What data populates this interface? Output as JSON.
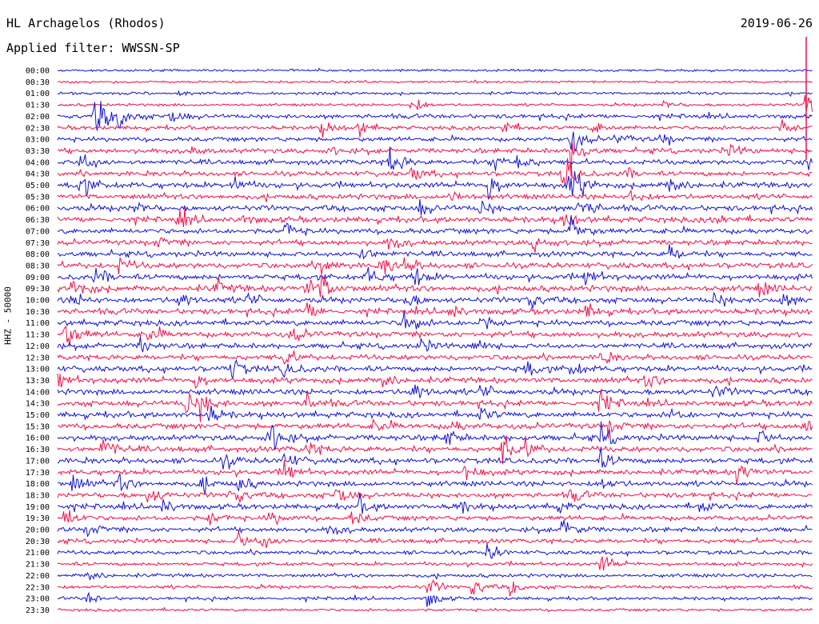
{
  "header": {
    "station": "HL Archagelos (Rhodos)",
    "filter_text": "Applied filter: WWSSN-SP",
    "date": "2019-06-26"
  },
  "axis": {
    "channel_label": "HHZ - 50000"
  },
  "colors": {
    "blue_trace": "#1212d4",
    "red_trace": "#f0104a",
    "background": "#ffffff"
  },
  "chart_data": {
    "type": "line",
    "title": "HL Archagelos (Rhodos)",
    "subtitle": "Applied filter: WWSSN-SP",
    "date": "2019-06-26",
    "ylabel": "HHZ - 50000",
    "xlabel": "",
    "grid": false,
    "row_interval_minutes": 30,
    "row_colors": [
      "blue",
      "red"
    ],
    "categories": [
      "00:00",
      "00:30",
      "01:00",
      "01:30",
      "02:00",
      "02:30",
      "03:00",
      "03:30",
      "04:00",
      "04:30",
      "05:00",
      "05:30",
      "06:00",
      "06:30",
      "07:00",
      "07:30",
      "08:00",
      "08:30",
      "09:00",
      "09:30",
      "10:00",
      "10:30",
      "11:00",
      "11:30",
      "12:00",
      "12:30",
      "13:00",
      "13:30",
      "14:00",
      "14:30",
      "15:00",
      "15:30",
      "16:00",
      "16:30",
      "17:00",
      "17:30",
      "18:00",
      "18:30",
      "19:00",
      "19:30",
      "20:00",
      "20:30",
      "21:00",
      "21:30",
      "22:00",
      "22:30",
      "23:00",
      "23:30"
    ],
    "noise_level": [
      0.2,
      0.2,
      0.3,
      0.3,
      0.7,
      0.6,
      0.7,
      0.8,
      0.8,
      0.8,
      1.0,
      0.9,
      1.0,
      1.0,
      0.9,
      0.9,
      0.9,
      1.0,
      1.0,
      1.1,
      1.0,
      1.0,
      1.0,
      1.0,
      0.9,
      0.9,
      1.0,
      1.0,
      1.0,
      1.0,
      1.0,
      1.0,
      1.0,
      1.0,
      1.0,
      0.9,
      0.9,
      0.9,
      0.9,
      0.8,
      0.8,
      0.7,
      0.6,
      0.5,
      0.5,
      0.5,
      0.4,
      0.3
    ],
    "events": [
      {
        "row": 1,
        "t": 0.4,
        "a": 0.4
      },
      {
        "row": 2,
        "t": 0.16,
        "a": 0.3
      },
      {
        "row": 3,
        "t": 0.47,
        "a": 1.2
      },
      {
        "row": 3,
        "t": 0.8,
        "a": 0.6
      },
      {
        "row": 3,
        "t": 0.99,
        "a": 2.0
      },
      {
        "row": 4,
        "t": 0.05,
        "a": 3.0
      },
      {
        "row": 4,
        "t": 0.08,
        "a": 2.0
      },
      {
        "row": 4,
        "t": 0.15,
        "a": 1.0
      },
      {
        "row": 5,
        "t": 0.35,
        "a": 1.0
      },
      {
        "row": 5,
        "t": 0.4,
        "a": 1.0
      },
      {
        "row": 5,
        "t": 0.59,
        "a": 1.0
      },
      {
        "row": 5,
        "t": 0.71,
        "a": 0.9
      },
      {
        "row": 5,
        "t": 0.96,
        "a": 0.9
      },
      {
        "row": 6,
        "t": 0.68,
        "a": 2.0
      },
      {
        "row": 6,
        "t": 0.74,
        "a": 0.8
      },
      {
        "row": 6,
        "t": 0.8,
        "a": 0.8
      },
      {
        "row": 7,
        "t": 0.17,
        "a": 0.7
      },
      {
        "row": 7,
        "t": 0.36,
        "a": 0.5
      },
      {
        "row": 7,
        "t": 0.68,
        "a": 2.5
      },
      {
        "row": 7,
        "t": 0.89,
        "a": 0.8
      },
      {
        "row": 8,
        "t": 0.03,
        "a": 2.0
      },
      {
        "row": 8,
        "t": 0.44,
        "a": 2.0
      },
      {
        "row": 8,
        "t": 0.58,
        "a": 1.5
      },
      {
        "row": 8,
        "t": 0.61,
        "a": 1.2
      },
      {
        "row": 8,
        "t": 0.99,
        "a": 1.5
      },
      {
        "row": 9,
        "t": 0.47,
        "a": 1.0
      },
      {
        "row": 9,
        "t": 0.67,
        "a": 2.5
      },
      {
        "row": 9,
        "t": 0.75,
        "a": 0.8
      },
      {
        "row": 10,
        "t": 0.03,
        "a": 1.6
      },
      {
        "row": 10,
        "t": 0.23,
        "a": 1.2
      },
      {
        "row": 10,
        "t": 0.57,
        "a": 2.0
      },
      {
        "row": 10,
        "t": 0.68,
        "a": 3.5
      },
      {
        "row": 10,
        "t": 0.81,
        "a": 1.2
      },
      {
        "row": 11,
        "t": 0.52,
        "a": 1.0
      },
      {
        "row": 11,
        "t": 0.76,
        "a": 1.0
      },
      {
        "row": 12,
        "t": 0.1,
        "a": 1.0
      },
      {
        "row": 12,
        "t": 0.48,
        "a": 1.0
      },
      {
        "row": 12,
        "t": 0.56,
        "a": 1.0
      },
      {
        "row": 12,
        "t": 0.69,
        "a": 2.0
      },
      {
        "row": 13,
        "t": 0.16,
        "a": 1.2
      },
      {
        "row": 13,
        "t": 0.24,
        "a": 0.8
      },
      {
        "row": 13,
        "t": 0.67,
        "a": 1.0
      },
      {
        "row": 13,
        "t": 0.87,
        "a": 1.0
      },
      {
        "row": 14,
        "t": 0.3,
        "a": 1.2
      },
      {
        "row": 14,
        "t": 0.68,
        "a": 2.0
      },
      {
        "row": 15,
        "t": 0.13,
        "a": 0.8
      },
      {
        "row": 15,
        "t": 0.44,
        "a": 1.2
      },
      {
        "row": 15,
        "t": 0.63,
        "a": 1.0
      },
      {
        "row": 16,
        "t": 0.4,
        "a": 1.2
      },
      {
        "row": 16,
        "t": 0.81,
        "a": 1.2
      },
      {
        "row": 17,
        "t": 0.08,
        "a": 1.0
      },
      {
        "row": 17,
        "t": 0.35,
        "a": 1.2
      },
      {
        "row": 17,
        "t": 0.43,
        "a": 1.2
      },
      {
        "row": 17,
        "t": 0.46,
        "a": 1.2
      },
      {
        "row": 18,
        "t": 0.05,
        "a": 1.2
      },
      {
        "row": 18,
        "t": 0.41,
        "a": 1.2
      },
      {
        "row": 18,
        "t": 0.47,
        "a": 1.5
      },
      {
        "row": 18,
        "t": 0.7,
        "a": 1.3
      },
      {
        "row": 19,
        "t": 0.02,
        "a": 1.5
      },
      {
        "row": 19,
        "t": 0.21,
        "a": 1.0
      },
      {
        "row": 19,
        "t": 0.33,
        "a": 1.2
      },
      {
        "row": 19,
        "t": 0.35,
        "a": 1.8
      },
      {
        "row": 19,
        "t": 0.93,
        "a": 1.0
      },
      {
        "row": 20,
        "t": 0.02,
        "a": 1.0
      },
      {
        "row": 20,
        "t": 0.16,
        "a": 1.2
      },
      {
        "row": 20,
        "t": 0.25,
        "a": 1.0
      },
      {
        "row": 20,
        "t": 0.46,
        "a": 1.2
      },
      {
        "row": 20,
        "t": 0.62,
        "a": 1.5
      },
      {
        "row": 20,
        "t": 0.87,
        "a": 1.0
      },
      {
        "row": 20,
        "t": 0.96,
        "a": 1.0
      },
      {
        "row": 21,
        "t": 0.33,
        "a": 1.2
      },
      {
        "row": 21,
        "t": 0.52,
        "a": 1.0
      },
      {
        "row": 21,
        "t": 0.7,
        "a": 1.0
      },
      {
        "row": 22,
        "t": 0.46,
        "a": 2.0
      },
      {
        "row": 22,
        "t": 0.56,
        "a": 1.0
      },
      {
        "row": 23,
        "t": 0.01,
        "a": 2.0
      },
      {
        "row": 23,
        "t": 0.12,
        "a": 1.2
      },
      {
        "row": 23,
        "t": 0.31,
        "a": 1.0
      },
      {
        "row": 24,
        "t": 0.11,
        "a": 1.0
      },
      {
        "row": 24,
        "t": 0.48,
        "a": 1.0
      },
      {
        "row": 24,
        "t": 0.55,
        "a": 1.0
      },
      {
        "row": 25,
        "t": 0.3,
        "a": 1.2
      },
      {
        "row": 25,
        "t": 0.72,
        "a": 1.0
      },
      {
        "row": 26,
        "t": 0.23,
        "a": 1.5
      },
      {
        "row": 26,
        "t": 0.3,
        "a": 1.2
      },
      {
        "row": 26,
        "t": 0.62,
        "a": 1.2
      },
      {
        "row": 26,
        "t": 0.68,
        "a": 1.0
      },
      {
        "row": 27,
        "t": 0.0,
        "a": 1.2
      },
      {
        "row": 27,
        "t": 0.18,
        "a": 1.2
      },
      {
        "row": 27,
        "t": 0.43,
        "a": 1.0
      },
      {
        "row": 27,
        "t": 0.78,
        "a": 1.0
      },
      {
        "row": 28,
        "t": 0.47,
        "a": 1.5
      },
      {
        "row": 28,
        "t": 0.56,
        "a": 1.0
      },
      {
        "row": 28,
        "t": 0.87,
        "a": 1.0
      },
      {
        "row": 29,
        "t": 0.17,
        "a": 1.8
      },
      {
        "row": 29,
        "t": 0.19,
        "a": 1.5
      },
      {
        "row": 29,
        "t": 0.33,
        "a": 1.2
      },
      {
        "row": 29,
        "t": 0.72,
        "a": 1.5
      },
      {
        "row": 30,
        "t": 0.2,
        "a": 1.2
      },
      {
        "row": 30,
        "t": 0.56,
        "a": 1.0
      },
      {
        "row": 30,
        "t": 0.81,
        "a": 1.0
      },
      {
        "row": 31,
        "t": 0.42,
        "a": 1.0
      },
      {
        "row": 31,
        "t": 0.52,
        "a": 0.8
      },
      {
        "row": 31,
        "t": 0.73,
        "a": 1.0
      },
      {
        "row": 31,
        "t": 0.99,
        "a": 1.0
      },
      {
        "row": 32,
        "t": 0.28,
        "a": 2.5
      },
      {
        "row": 32,
        "t": 0.51,
        "a": 1.5
      },
      {
        "row": 32,
        "t": 0.72,
        "a": 1.5
      },
      {
        "row": 32,
        "t": 0.93,
        "a": 1.0
      },
      {
        "row": 33,
        "t": 0.06,
        "a": 1.5
      },
      {
        "row": 33,
        "t": 0.33,
        "a": 1.0
      },
      {
        "row": 33,
        "t": 0.59,
        "a": 2.0
      },
      {
        "row": 33,
        "t": 0.62,
        "a": 1.2
      },
      {
        "row": 34,
        "t": 0.22,
        "a": 1.0
      },
      {
        "row": 34,
        "t": 0.3,
        "a": 1.2
      },
      {
        "row": 34,
        "t": 0.72,
        "a": 1.2
      },
      {
        "row": 35,
        "t": 0.3,
        "a": 1.5
      },
      {
        "row": 35,
        "t": 0.54,
        "a": 1.5
      },
      {
        "row": 35,
        "t": 0.9,
        "a": 1.5
      },
      {
        "row": 36,
        "t": 0.02,
        "a": 1.2
      },
      {
        "row": 36,
        "t": 0.08,
        "a": 1.2
      },
      {
        "row": 36,
        "t": 0.19,
        "a": 1.0
      },
      {
        "row": 36,
        "t": 0.24,
        "a": 1.0
      },
      {
        "row": 36,
        "t": 0.72,
        "a": 1.0
      },
      {
        "row": 37,
        "t": 0.12,
        "a": 1.2
      },
      {
        "row": 37,
        "t": 0.23,
        "a": 1.5
      },
      {
        "row": 37,
        "t": 0.37,
        "a": 1.5
      },
      {
        "row": 37,
        "t": 0.68,
        "a": 1.0
      },
      {
        "row": 38,
        "t": 0.14,
        "a": 1.0
      },
      {
        "row": 38,
        "t": 0.4,
        "a": 1.0
      },
      {
        "row": 38,
        "t": 0.53,
        "a": 1.0
      },
      {
        "row": 38,
        "t": 0.66,
        "a": 1.0
      },
      {
        "row": 38,
        "t": 0.85,
        "a": 1.0
      },
      {
        "row": 39,
        "t": 0.01,
        "a": 1.5
      },
      {
        "row": 39,
        "t": 0.2,
        "a": 1.0
      },
      {
        "row": 39,
        "t": 0.28,
        "a": 1.0
      },
      {
        "row": 39,
        "t": 0.39,
        "a": 1.0
      },
      {
        "row": 40,
        "t": 0.04,
        "a": 1.0
      },
      {
        "row": 40,
        "t": 0.36,
        "a": 1.0
      },
      {
        "row": 40,
        "t": 0.67,
        "a": 1.5
      },
      {
        "row": 41,
        "t": 0.24,
        "a": 1.2
      },
      {
        "row": 41,
        "t": 0.27,
        "a": 1.0
      },
      {
        "row": 42,
        "t": 0.57,
        "a": 1.2
      },
      {
        "row": 43,
        "t": 0.72,
        "a": 1.2
      },
      {
        "row": 44,
        "t": 0.04,
        "a": 0.8
      },
      {
        "row": 45,
        "t": 0.49,
        "a": 1.2
      },
      {
        "row": 45,
        "t": 0.55,
        "a": 1.2
      },
      {
        "row": 45,
        "t": 0.6,
        "a": 1.0
      },
      {
        "row": 46,
        "t": 0.04,
        "a": 0.8
      },
      {
        "row": 46,
        "t": 0.49,
        "a": 1.2
      }
    ]
  }
}
